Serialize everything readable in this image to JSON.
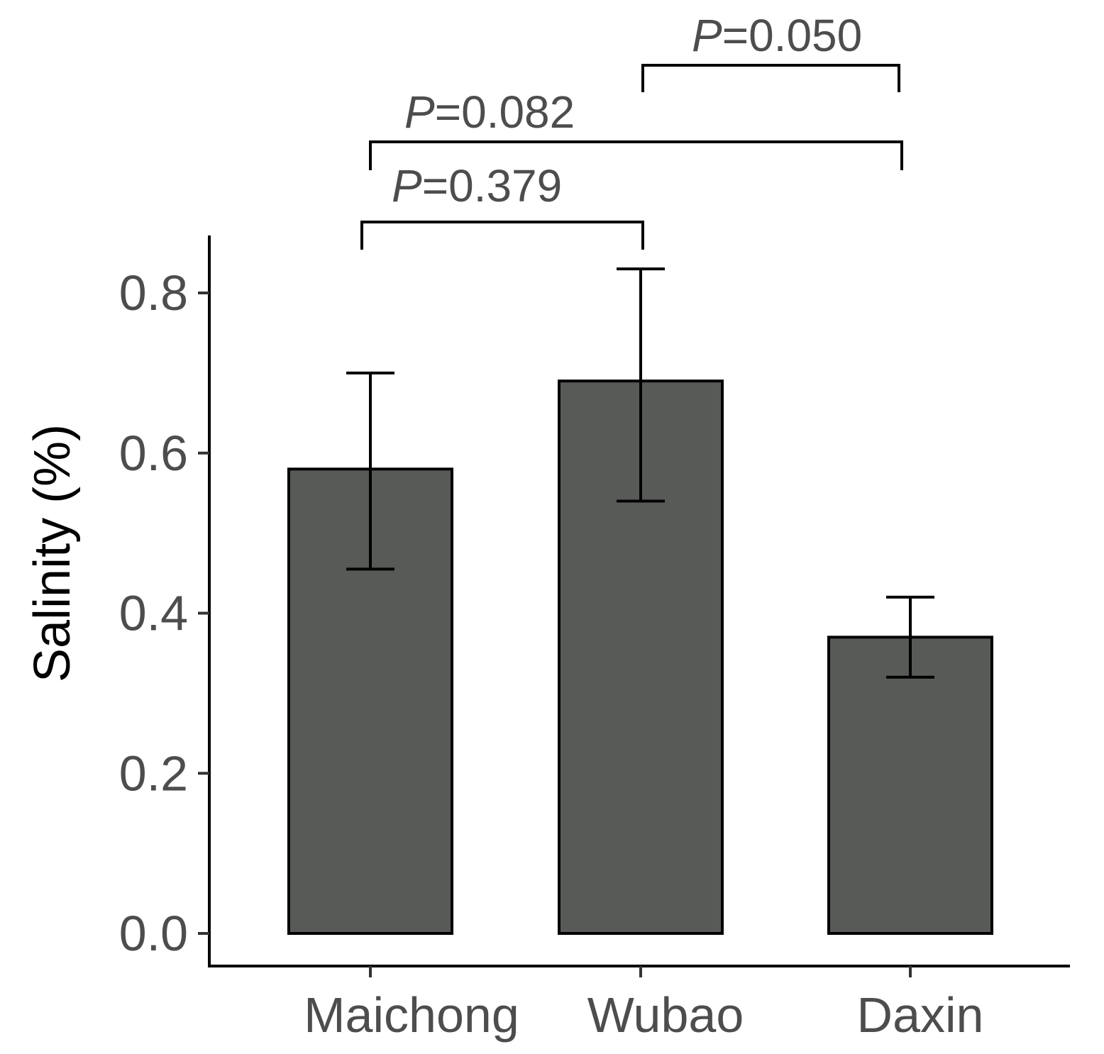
{
  "chart_data": {
    "type": "bar",
    "ylabel": "Salinity (%)",
    "categories": [
      "Maichong",
      "Wubao",
      "Daxin"
    ],
    "values": [
      0.58,
      0.69,
      0.37
    ],
    "error_bars": [
      {
        "low": 0.455,
        "high": 0.7
      },
      {
        "low": 0.54,
        "high": 0.83
      },
      {
        "low": 0.32,
        "high": 0.42
      }
    ],
    "ylim": [
      -0.04,
      0.87
    ],
    "yticks": [
      "0.0",
      "0.2",
      "0.4",
      "0.6",
      "0.8"
    ],
    "ytick_values": [
      0.0,
      0.2,
      0.4,
      0.6,
      0.8
    ],
    "bar_color": "#585a58",
    "grid": false,
    "comparisons": [
      {
        "from": 0,
        "to": 1,
        "p_prefix": "P",
        "p_value": "=0.379"
      },
      {
        "from": 0,
        "to": 2,
        "p_prefix": "P",
        "p_value": "=0.082"
      },
      {
        "from": 1,
        "to": 2,
        "p_prefix": "P",
        "p_value": "=0.050"
      }
    ]
  }
}
